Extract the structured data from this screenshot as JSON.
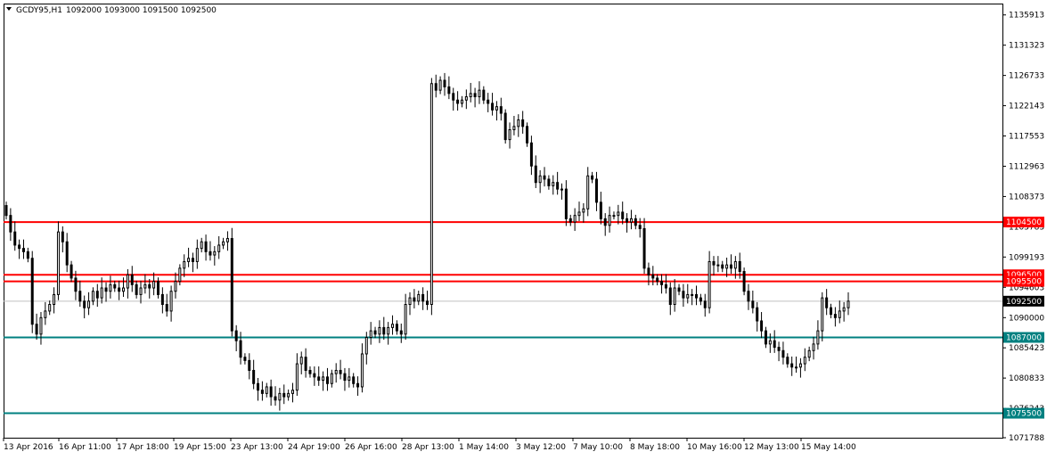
{
  "header": {
    "symbol_label": "GCDY95,H1",
    "ohlc_label": "1092000 1093000 1091500 1092500"
  },
  "colors": {
    "background": "#ffffff",
    "frame": "#000000",
    "bull_candle": "#ffffff",
    "bear_candle": "#000000",
    "resistance_line": "#ff0000",
    "support_line": "#008080",
    "current_price_line": "#c0c0c0",
    "current_price_tag": "#000000"
  },
  "chart_data": {
    "type": "candlestick",
    "symbol": "GCDY95",
    "timeframe": "H1",
    "ylim": [
      1071788,
      1137500
    ],
    "y_ticks": [
      1135913,
      1131323,
      1126733,
      1122143,
      1117553,
      1112963,
      1108373,
      1103783,
      1099193,
      1094603,
      1090000,
      1085423,
      1080833,
      1076243,
      1071788
    ],
    "x_labels": [
      "13 Apr 2016",
      "16 Apr 11:00",
      "17 Apr 18:00",
      "19 Apr 15:00",
      "23 Apr 13:00",
      "24 Apr 19:00",
      "26 Apr 16:00",
      "28 Apr 13:00",
      "1 May 14:00",
      "3 May 12:00",
      "7 May 10:00",
      "8 May 18:00",
      "10 May 16:00",
      "12 May 13:00",
      "15 May 14:00"
    ],
    "horizontal_lines": [
      {
        "price": 1104500,
        "label": "1104500",
        "color": "#ff0000"
      },
      {
        "price": 1096500,
        "label": "1096500",
        "color": "#ff0000"
      },
      {
        "price": 1095500,
        "label": "1095500",
        "color": "#ff0000"
      },
      {
        "price": 1087000,
        "label": "1087000",
        "color": "#008080"
      },
      {
        "price": 1075500,
        "label": "1075500",
        "color": "#008080"
      }
    ],
    "current_price": {
      "price": 1092500,
      "label": "1092500"
    },
    "candle_closes": [
      1105500,
      1103000,
      1101000,
      1100500,
      1100000,
      1099000,
      1089000,
      1087500,
      1090000,
      1091000,
      1092000,
      1093500,
      1103000,
      1101500,
      1098000,
      1096000,
      1094000,
      1092500,
      1091500,
      1092500,
      1094000,
      1093000,
      1094500,
      1094000,
      1095000,
      1094500,
      1094000,
      1094500,
      1096500,
      1095000,
      1093500,
      1094500,
      1095000,
      1094500,
      1095500,
      1093500,
      1092000,
      1091000,
      1094000,
      1095500,
      1097500,
      1098500,
      1099000,
      1098500,
      1100500,
      1101500,
      1100000,
      1099500,
      1100000,
      1101000,
      1101500,
      1102000,
      1088000,
      1086500,
      1084000,
      1083500,
      1082000,
      1080000,
      1079000,
      1078500,
      1079500,
      1078000,
      1077500,
      1078500,
      1078000,
      1078500,
      1079000,
      1083000,
      1084000,
      1082000,
      1081500,
      1081000,
      1080500,
      1081000,
      1080000,
      1081500,
      1082000,
      1081500,
      1080500,
      1081000,
      1080000,
      1079500,
      1084500,
      1087000,
      1088000,
      1087500,
      1088500,
      1087500,
      1088500,
      1089000,
      1088000,
      1087500,
      1092000,
      1093000,
      1092500,
      1093500,
      1092500,
      1092000,
      1125500,
      1124500,
      1126000,
      1125000,
      1124000,
      1123000,
      1122500,
      1123000,
      1123500,
      1124000,
      1123500,
      1124500,
      1123000,
      1122500,
      1121500,
      1122000,
      1121000,
      1117000,
      1118500,
      1119000,
      1120000,
      1119000,
      1116500,
      1113000,
      1110500,
      1111500,
      1111000,
      1110000,
      1110500,
      1109500,
      1109500,
      1105000,
      1104500,
      1105500,
      1106000,
      1106500,
      1111500,
      1111000,
      1107500,
      1105000,
      1104000,
      1105500,
      1105500,
      1106000,
      1105000,
      1104500,
      1105000,
      1104000,
      1103500,
      1097500,
      1096500,
      1096000,
      1095500,
      1095000,
      1094500,
      1092000,
      1094500,
      1094000,
      1093000,
      1093500,
      1093500,
      1093000,
      1092500,
      1091500,
      1098500,
      1098000,
      1098000,
      1097500,
      1098000,
      1097500,
      1098500,
      1097000,
      1094000,
      1092500,
      1091500,
      1089500,
      1088000,
      1086000,
      1086500,
      1085500,
      1085000,
      1084000,
      1083000,
      1082500,
      1082500,
      1083000,
      1084000,
      1085000,
      1086000,
      1088000,
      1093000,
      1091500,
      1090500,
      1090000,
      1091000,
      1091500,
      1092500
    ]
  }
}
